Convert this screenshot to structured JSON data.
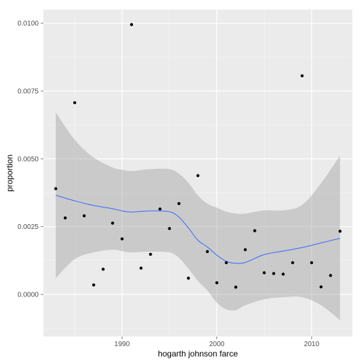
{
  "chart_data": {
    "type": "scatter",
    "xlabel": "hogarth johnson farce",
    "ylabel": "proportion",
    "xlim": [
      1981.7,
      2014.3
    ],
    "ylim": [
      -0.00155,
      0.0105
    ],
    "x_ticks": [
      1990,
      2000,
      2010
    ],
    "x_tick_labels": [
      "1990",
      "2000",
      "2010"
    ],
    "y_ticks": [
      0.0,
      0.0025,
      0.005,
      0.0075,
      0.01
    ],
    "y_tick_labels": [
      "0.0000",
      "0.0025",
      "0.0050",
      "0.0075",
      "0.0100"
    ],
    "grid": true,
    "points": [
      {
        "x": 1983,
        "y": 0.0039
      },
      {
        "x": 1984,
        "y": 0.00282
      },
      {
        "x": 1985,
        "y": 0.00707
      },
      {
        "x": 1986,
        "y": 0.0029
      },
      {
        "x": 1987,
        "y": 0.00035
      },
      {
        "x": 1988,
        "y": 0.00093
      },
      {
        "x": 1989,
        "y": 0.00263
      },
      {
        "x": 1990,
        "y": 0.00205
      },
      {
        "x": 1991,
        "y": 0.00995
      },
      {
        "x": 1992,
        "y": 0.00097
      },
      {
        "x": 1993,
        "y": 0.00148
      },
      {
        "x": 1994,
        "y": 0.00315
      },
      {
        "x": 1995,
        "y": 0.00243
      },
      {
        "x": 1996,
        "y": 0.00335
      },
      {
        "x": 1997,
        "y": 0.0006
      },
      {
        "x": 1998,
        "y": 0.00438
      },
      {
        "x": 1999,
        "y": 0.00158
      },
      {
        "x": 2000,
        "y": 0.00043
      },
      {
        "x": 2001,
        "y": 0.00117
      },
      {
        "x": 2002,
        "y": 0.00027
      },
      {
        "x": 2003,
        "y": 0.00165
      },
      {
        "x": 2004,
        "y": 0.00235
      },
      {
        "x": 2005,
        "y": 0.0008
      },
      {
        "x": 2006,
        "y": 0.00077
      },
      {
        "x": 2007,
        "y": 0.00075
      },
      {
        "x": 2008,
        "y": 0.00117
      },
      {
        "x": 2009,
        "y": 0.00806
      },
      {
        "x": 2010,
        "y": 0.00117
      },
      {
        "x": 2011,
        "y": 0.00028
      },
      {
        "x": 2012,
        "y": 0.0007
      },
      {
        "x": 2013,
        "y": 0.00233
      }
    ],
    "smooth": {
      "method": "loess",
      "color": "#3366ff",
      "band_color": "#999999",
      "x": [
        1983,
        1985,
        1987,
        1989,
        1990,
        1991,
        1993,
        1995,
        1996,
        1997,
        1998,
        1999,
        2000,
        2001,
        2002,
        2003,
        2005,
        2007,
        2009,
        2011,
        2013
      ],
      "y": [
        0.00366,
        0.00345,
        0.00328,
        0.00316,
        0.00308,
        0.00304,
        0.00308,
        0.00305,
        0.00285,
        0.00245,
        0.002,
        0.00175,
        0.00145,
        0.00122,
        0.00115,
        0.00118,
        0.00147,
        0.0016,
        0.00173,
        0.0019,
        0.00207
      ],
      "lower": [
        0.0006,
        0.0013,
        0.00155,
        0.00165,
        0.0016,
        0.00155,
        0.00158,
        0.00155,
        0.00135,
        0.00095,
        0.0005,
        0.00015,
        -0.0003,
        -0.00055,
        -0.00058,
        -0.0004,
        -0.00018,
        -0.0001,
        -0.0001,
        -0.0004,
        -0.00095
      ],
      "upper": [
        0.00672,
        0.0057,
        0.00505,
        0.00468,
        0.0046,
        0.00455,
        0.00462,
        0.00462,
        0.00445,
        0.00412,
        0.00365,
        0.00335,
        0.0032,
        0.00305,
        0.00298,
        0.00298,
        0.0031,
        0.0031,
        0.0033,
        0.0041,
        0.00512
      ]
    },
    "colors": {
      "panel": "#ebebeb",
      "grid_major": "#ffffff",
      "grid_minor": "#f5f5f5",
      "point": "#000000"
    }
  }
}
